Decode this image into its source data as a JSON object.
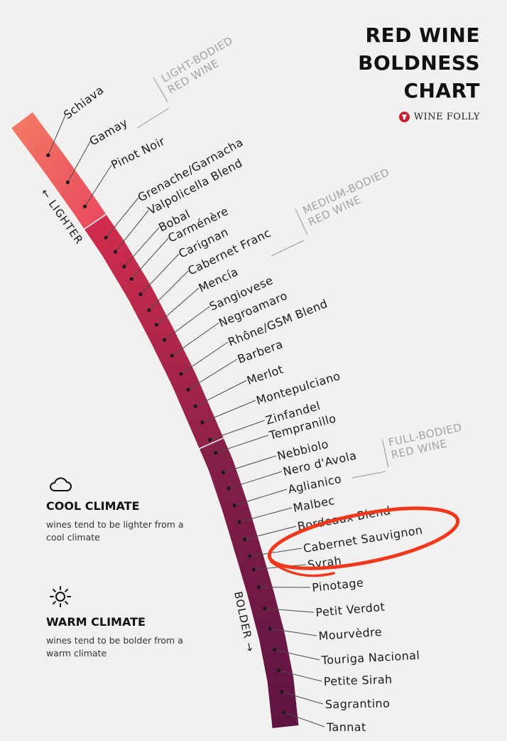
{
  "title": {
    "line1": "RED WINE",
    "line2": "BOLDNESS",
    "line3": "CHART"
  },
  "brand": "WINE FOLLY",
  "colors": {
    "light": "#f4705c",
    "medium": "#c52a4a",
    "full": "#7a1b48",
    "bolder": "#5a1340",
    "highlight": "#f0391c"
  },
  "axis": {
    "lighter": "← LIGHTER",
    "bolder": "BOLDER →"
  },
  "sections": [
    {
      "line1": "LIGHT-BODIED",
      "line2": "RED WINE"
    },
    {
      "line1": "MEDIUM-BODIED",
      "line2": "RED WINE"
    },
    {
      "line1": "FULL-BODIED",
      "line2": "RED WINE"
    }
  ],
  "wines": [
    "Schiava",
    "Gamay",
    "Pinot Noir",
    "Grenache/Garnacha",
    "Valpolicella Blend",
    "Bobal",
    "Carménère",
    "Carignan",
    "Cabernet Franc",
    "Mencía",
    "Sangiovese",
    "Negroamaro",
    "Rhône/GSM Blend",
    "Barbera",
    "Merlot",
    "Montepulciano",
    "Zinfandel",
    "Tempranillo",
    "Nebbiolo",
    "Nero d'Avola",
    "Aglianico",
    "Malbec",
    "Bordeaux Blend",
    "Cabernet Sauvignon",
    "Syrah",
    "Pinotage",
    "Petit Verdot",
    "Mourvèdre",
    "Touriga Nacional",
    "Petite Sirah",
    "Sagrantino",
    "Tannat"
  ],
  "highlighted": "Cabernet Sauvignon",
  "legend": {
    "cool_title": "COOL CLIMATE",
    "cool_desc": "wines tend to be lighter from a cool climate",
    "warm_title": "WARM CLIMATE",
    "warm_desc": "wines tend to be bolder from a warm climate"
  }
}
